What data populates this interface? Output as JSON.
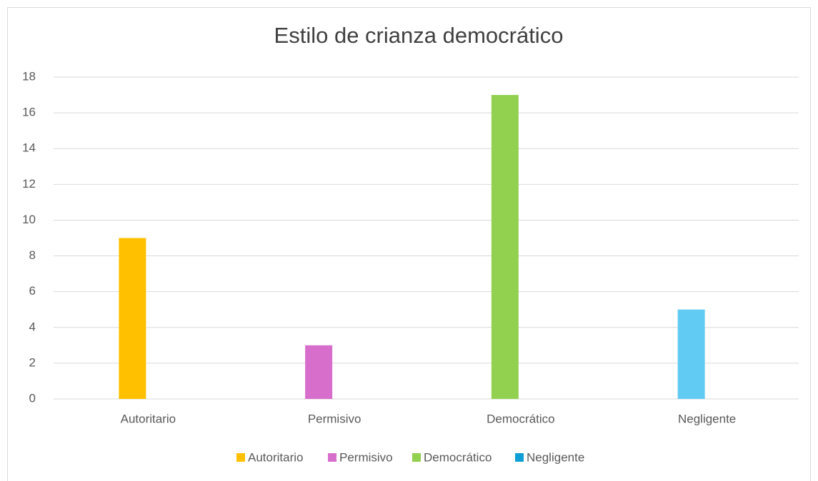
{
  "chart_data": {
    "type": "bar",
    "title": "Estilo de crianza democrático",
    "categories": [
      "Autoritario",
      "Permisivo",
      "Democrático",
      "Negligente"
    ],
    "values": [
      9,
      3,
      17,
      5
    ],
    "colors": [
      "#ffc000",
      "#d86ecc",
      "#92d050",
      "#61cbf3"
    ],
    "ylim": [
      0,
      18
    ],
    "yticks": [
      0,
      2,
      4,
      6,
      8,
      10,
      12,
      14,
      16,
      18
    ],
    "grid": true,
    "legend": [
      {
        "name": "Autoritario",
        "color": "#ffc000"
      },
      {
        "name": "Permisivo",
        "color": "#d86ecc"
      },
      {
        "name": "Democrático",
        "color": "#92d050"
      },
      {
        "name": "Negligente",
        "color": "#0f9ed5"
      }
    ],
    "legend_position": "bottom"
  }
}
